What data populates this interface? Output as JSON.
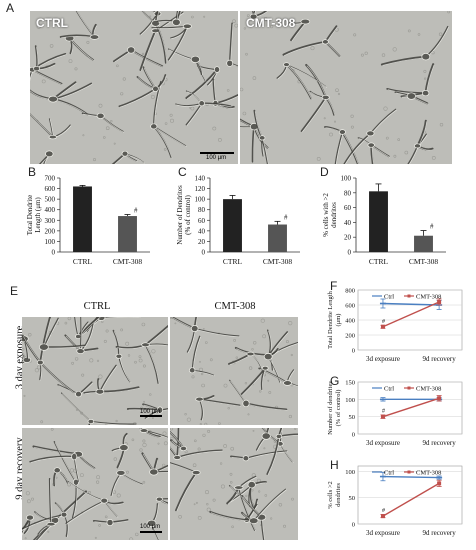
{
  "panel_letters": {
    "A": "A",
    "B": "B",
    "C": "C",
    "D": "D",
    "E": "E",
    "F": "F",
    "G": "G",
    "H": "H"
  },
  "panel_a": {
    "left_label": "CTRL",
    "right_label": "CMT-308",
    "scale_text": "100 µm"
  },
  "panel_e": {
    "col_ctrl": "CTRL",
    "col_cmt": "CMT-308",
    "row_1": "3 day exposure",
    "row_2": "9 day recovery",
    "scale_text": "100 µm"
  },
  "colors": {
    "bar_ctrl": "#222222",
    "bar_cmt": "#555555",
    "ctrl_line": "#4a7fc1",
    "cmt_line": "#c0504d"
  },
  "chart_data": [
    {
      "id": "B",
      "type": "bar",
      "categories": [
        "CTRL",
        "CMT-308"
      ],
      "values": [
        620,
        340
      ],
      "errors": [
        10,
        15
      ],
      "ylabel": "Total Dendrite Length (μm)",
      "yticks": [
        "0",
        "100",
        "200",
        "300",
        "400",
        "500",
        "600",
        "700"
      ],
      "ylim": [
        0,
        700
      ],
      "annotations": [
        "",
        "#"
      ]
    },
    {
      "id": "C",
      "type": "bar",
      "categories": [
        "CTRL",
        "CMT-308"
      ],
      "values": [
        100,
        52
      ],
      "errors": [
        7,
        6
      ],
      "ylabel": "Number of Dendrites (% of control)",
      "yticks": [
        "0",
        "20",
        "40",
        "60",
        "80",
        "100",
        "120",
        "140"
      ],
      "ylim": [
        0,
        140
      ],
      "annotations": [
        "",
        "#"
      ]
    },
    {
      "id": "D",
      "type": "bar",
      "categories": [
        "CTRL",
        "CMT-308"
      ],
      "values": [
        82,
        22
      ],
      "errors": [
        10,
        7
      ],
      "ylabel": "% cells with >2 dendrites",
      "yticks": [
        "0",
        "20",
        "40",
        "60",
        "80",
        "100"
      ],
      "ylim": [
        0,
        100
      ],
      "annotations": [
        "",
        "#"
      ]
    },
    {
      "id": "F",
      "type": "line",
      "categories": [
        "3d exposure",
        "9d recovery"
      ],
      "series": [
        {
          "name": "Ctrl",
          "values": [
            620,
            600
          ],
          "errors": [
            60,
            60
          ]
        },
        {
          "name": "CMT-308",
          "values": [
            310,
            640
          ],
          "errors": [
            20,
            40
          ]
        }
      ],
      "ylabel": "Total Dendrite Length (μm)",
      "yticks": [
        "0",
        "200",
        "400",
        "600",
        "800"
      ],
      "ylim": [
        0,
        800
      ],
      "annotations": [
        "#",
        ""
      ]
    },
    {
      "id": "G",
      "type": "line",
      "categories": [
        "3d exposure",
        "9d recovery"
      ],
      "series": [
        {
          "name": "Ctrl",
          "values": [
            100,
            100
          ],
          "errors": [
            5,
            5
          ]
        },
        {
          "name": "CMT-308",
          "values": [
            50,
            103
          ],
          "errors": [
            5,
            8
          ]
        }
      ],
      "ylabel": "Number of dendrites (% of control)",
      "yticks": [
        "0",
        "50",
        "100",
        "150"
      ],
      "ylim": [
        0,
        150
      ],
      "annotations": [
        "#",
        ""
      ]
    },
    {
      "id": "H",
      "type": "line",
      "categories": [
        "3d exposure",
        "9d recovery"
      ],
      "series": [
        {
          "name": "Ctrl",
          "values": [
            90,
            88
          ],
          "errors": [
            8,
            3
          ]
        },
        {
          "name": "CMT-308",
          "values": [
            15,
            77
          ],
          "errors": [
            3,
            6
          ]
        }
      ],
      "ylabel": "% cells >2 dendrites",
      "yticks": [
        "0",
        "50",
        "100"
      ],
      "ylim": [
        0,
        110
      ],
      "annotations": [
        "#",
        ""
      ]
    }
  ]
}
